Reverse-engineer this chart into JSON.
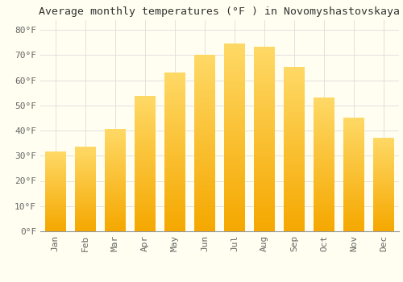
{
  "title": "Average monthly temperatures (°F ) in Novomyshastovskaya",
  "months": [
    "Jan",
    "Feb",
    "Mar",
    "Apr",
    "May",
    "Jun",
    "Jul",
    "Aug",
    "Sep",
    "Oct",
    "Nov",
    "Dec"
  ],
  "values": [
    31.5,
    33.5,
    40.5,
    53.5,
    63.0,
    70.0,
    74.5,
    73.0,
    65.0,
    53.0,
    45.0,
    37.0
  ],
  "bar_color_bottom": "#F5A800",
  "bar_color_top": "#FFD966",
  "background_color": "#FFFEF0",
  "grid_color": "#DDDDDD",
  "ylim": [
    0,
    84
  ],
  "yticks": [
    0,
    10,
    20,
    30,
    40,
    50,
    60,
    70,
    80
  ],
  "title_fontsize": 9.5,
  "tick_fontsize": 8,
  "tick_color": "#666666"
}
